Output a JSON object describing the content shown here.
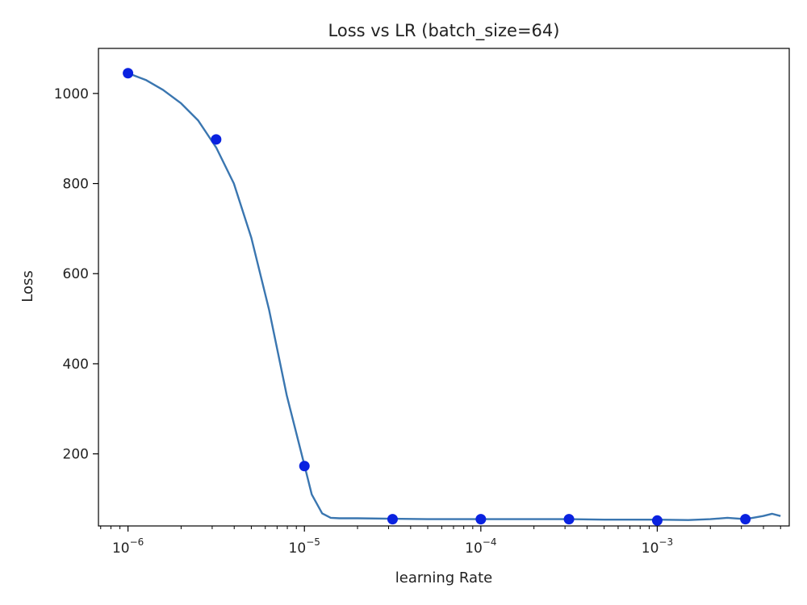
{
  "chart_data": {
    "type": "line",
    "title": "Loss vs LR (batch_size=64)",
    "xlabel": "learning Rate",
    "ylabel": "Loss",
    "xscale": "log",
    "xlim": [
      6.8e-07,
      0.0056
    ],
    "ylim": [
      40,
      1100
    ],
    "grid": false,
    "legend": "none",
    "x_ticks": [
      {
        "value": 1e-06,
        "base": "10",
        "exp": "−6"
      },
      {
        "value": 1e-05,
        "base": "10",
        "exp": "−5"
      },
      {
        "value": 0.0001,
        "base": "10",
        "exp": "−4"
      },
      {
        "value": 0.001,
        "base": "10",
        "exp": "−3"
      }
    ],
    "y_ticks": [
      200,
      400,
      600,
      800,
      1000
    ],
    "series": [
      {
        "type": "line",
        "color": "#3a76b0",
        "x": [
          1e-06,
          1.26e-06,
          1.58e-06,
          2e-06,
          2.5e-06,
          3.16e-06,
          3.98e-06,
          5e-06,
          6.3e-06,
          7.94e-06,
          1e-05,
          1.1e-05,
          1.26e-05,
          1.41e-05,
          1.58e-05,
          2e-05,
          3.16e-05,
          5e-05,
          0.0001,
          0.0002,
          0.000316,
          0.0005,
          0.001,
          0.0015,
          0.002,
          0.0025,
          0.00316,
          0.00398,
          0.00447,
          0.005
        ],
        "y": [
          1045,
          1030,
          1008,
          978,
          940,
          880,
          800,
          680,
          520,
          330,
          175,
          110,
          68,
          58,
          57,
          57,
          56,
          55,
          55,
          55,
          55,
          54,
          54,
          53,
          55,
          58,
          55,
          62,
          67,
          62
        ]
      },
      {
        "type": "scatter",
        "color": "#0a22e0",
        "x": [
          1e-06,
          3.16e-06,
          1e-05,
          3.16e-05,
          0.0001,
          0.000316,
          0.001,
          0.00316
        ],
        "y": [
          1045,
          898,
          173,
          55,
          55,
          55,
          52,
          55
        ]
      }
    ]
  }
}
